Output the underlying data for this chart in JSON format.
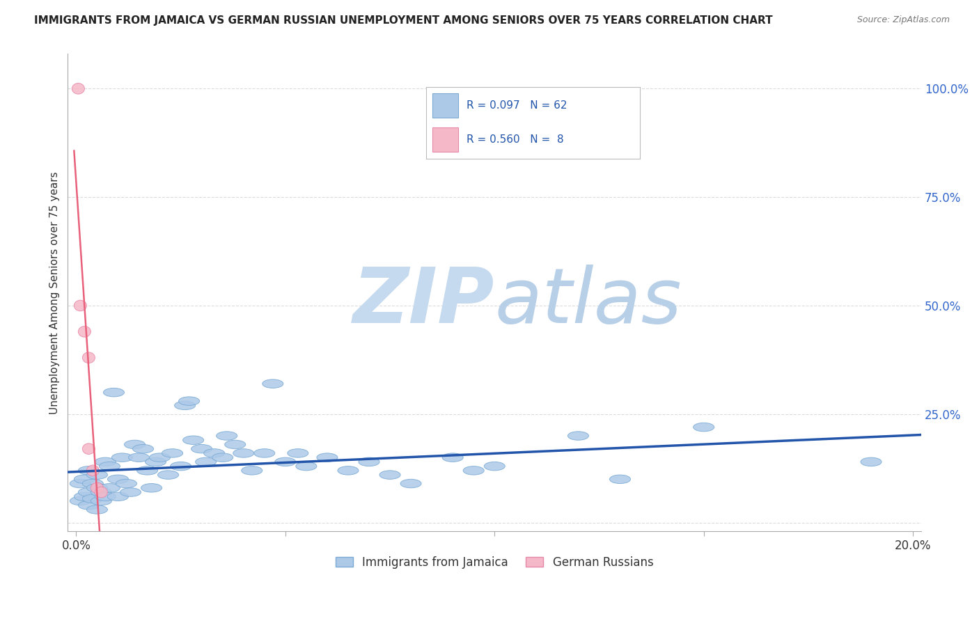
{
  "title": "IMMIGRANTS FROM JAMAICA VS GERMAN RUSSIAN UNEMPLOYMENT AMONG SENIORS OVER 75 YEARS CORRELATION CHART",
  "source": "Source: ZipAtlas.com",
  "ylabel": "Unemployment Among Seniors over 75 years",
  "xlim": [
    -0.002,
    0.202
  ],
  "ylim": [
    -0.02,
    1.08
  ],
  "blue_R": 0.097,
  "blue_N": 62,
  "pink_R": 0.56,
  "pink_N": 8,
  "blue_color": "#adc9e8",
  "blue_edge_color": "#7aaad4",
  "pink_color": "#f5b8c8",
  "pink_edge_color": "#e888a8",
  "blue_line_color": "#2255aa",
  "pink_line_color": "#e8607a",
  "watermark": "ZIPatlas",
  "watermark_color": "#d8e8f5",
  "blue_label": "Immigrants from Jamaica",
  "pink_label": "German Russians",
  "blue_x": [
    0.001,
    0.001,
    0.002,
    0.002,
    0.003,
    0.003,
    0.003,
    0.004,
    0.004,
    0.005,
    0.005,
    0.005,
    0.006,
    0.006,
    0.007,
    0.007,
    0.008,
    0.008,
    0.009,
    0.01,
    0.01,
    0.011,
    0.012,
    0.013,
    0.014,
    0.015,
    0.016,
    0.017,
    0.018,
    0.019,
    0.02,
    0.022,
    0.023,
    0.025,
    0.026,
    0.027,
    0.028,
    0.03,
    0.031,
    0.033,
    0.035,
    0.036,
    0.038,
    0.04,
    0.042,
    0.045,
    0.047,
    0.05,
    0.053,
    0.055,
    0.06,
    0.065,
    0.07,
    0.075,
    0.08,
    0.09,
    0.095,
    0.1,
    0.12,
    0.13,
    0.15,
    0.19
  ],
  "blue_y": [
    0.05,
    0.09,
    0.06,
    0.1,
    0.04,
    0.07,
    0.12,
    0.055,
    0.09,
    0.03,
    0.08,
    0.11,
    0.05,
    0.07,
    0.06,
    0.14,
    0.08,
    0.13,
    0.3,
    0.1,
    0.06,
    0.15,
    0.09,
    0.07,
    0.18,
    0.15,
    0.17,
    0.12,
    0.08,
    0.14,
    0.15,
    0.11,
    0.16,
    0.13,
    0.27,
    0.28,
    0.19,
    0.17,
    0.14,
    0.16,
    0.15,
    0.2,
    0.18,
    0.16,
    0.12,
    0.16,
    0.32,
    0.14,
    0.16,
    0.13,
    0.15,
    0.12,
    0.14,
    0.11,
    0.09,
    0.15,
    0.12,
    0.13,
    0.2,
    0.1,
    0.22,
    0.14
  ],
  "pink_x": [
    0.0005,
    0.001,
    0.002,
    0.003,
    0.003,
    0.004,
    0.005,
    0.006
  ],
  "pink_y": [
    1.0,
    0.5,
    0.44,
    0.38,
    0.17,
    0.12,
    0.08,
    0.07
  ],
  "background_color": "#ffffff",
  "grid_color": "#cccccc"
}
